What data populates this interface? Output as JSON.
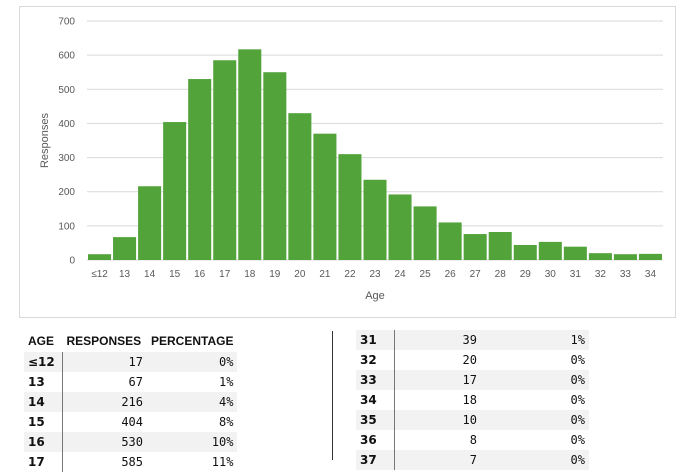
{
  "chart_data": {
    "type": "bar",
    "title": "",
    "xlabel": "Age",
    "ylabel": "Responses",
    "ylim": [
      0,
      700
    ],
    "yticks": [
      0,
      100,
      200,
      300,
      400,
      500,
      600,
      700
    ],
    "grid": true,
    "categories": [
      "≤12",
      "13",
      "14",
      "15",
      "16",
      "17",
      "18",
      "19",
      "20",
      "21",
      "22",
      "23",
      "24",
      "25",
      "26",
      "27",
      "28",
      "29",
      "30",
      "31",
      "32",
      "33",
      "34"
    ],
    "values": [
      17,
      67,
      216,
      404,
      530,
      585,
      617,
      550,
      430,
      370,
      310,
      235,
      192,
      157,
      110,
      76,
      82,
      44,
      53,
      39,
      20,
      17,
      18
    ],
    "bar_color": "#52a33a"
  },
  "table": {
    "headers": {
      "age": "AGE",
      "responses": "RESPONSES",
      "percentage": "PERCENTAGE"
    },
    "left_rows": [
      {
        "age": "≤12",
        "responses": "17",
        "percentage": "0%"
      },
      {
        "age": "13",
        "responses": "67",
        "percentage": "1%"
      },
      {
        "age": "14",
        "responses": "216",
        "percentage": "4%"
      },
      {
        "age": "15",
        "responses": "404",
        "percentage": "8%"
      },
      {
        "age": "16",
        "responses": "530",
        "percentage": "10%"
      },
      {
        "age": "17",
        "responses": "585",
        "percentage": "11%"
      }
    ],
    "right_rows": [
      {
        "age": "31",
        "responses": "39",
        "percentage": "1%"
      },
      {
        "age": "32",
        "responses": "20",
        "percentage": "0%"
      },
      {
        "age": "33",
        "responses": "17",
        "percentage": "0%"
      },
      {
        "age": "34",
        "responses": "18",
        "percentage": "0%"
      },
      {
        "age": "35",
        "responses": "10",
        "percentage": "0%"
      },
      {
        "age": "36",
        "responses": "8",
        "percentage": "0%"
      },
      {
        "age": "37",
        "responses": "7",
        "percentage": "0%"
      }
    ]
  }
}
